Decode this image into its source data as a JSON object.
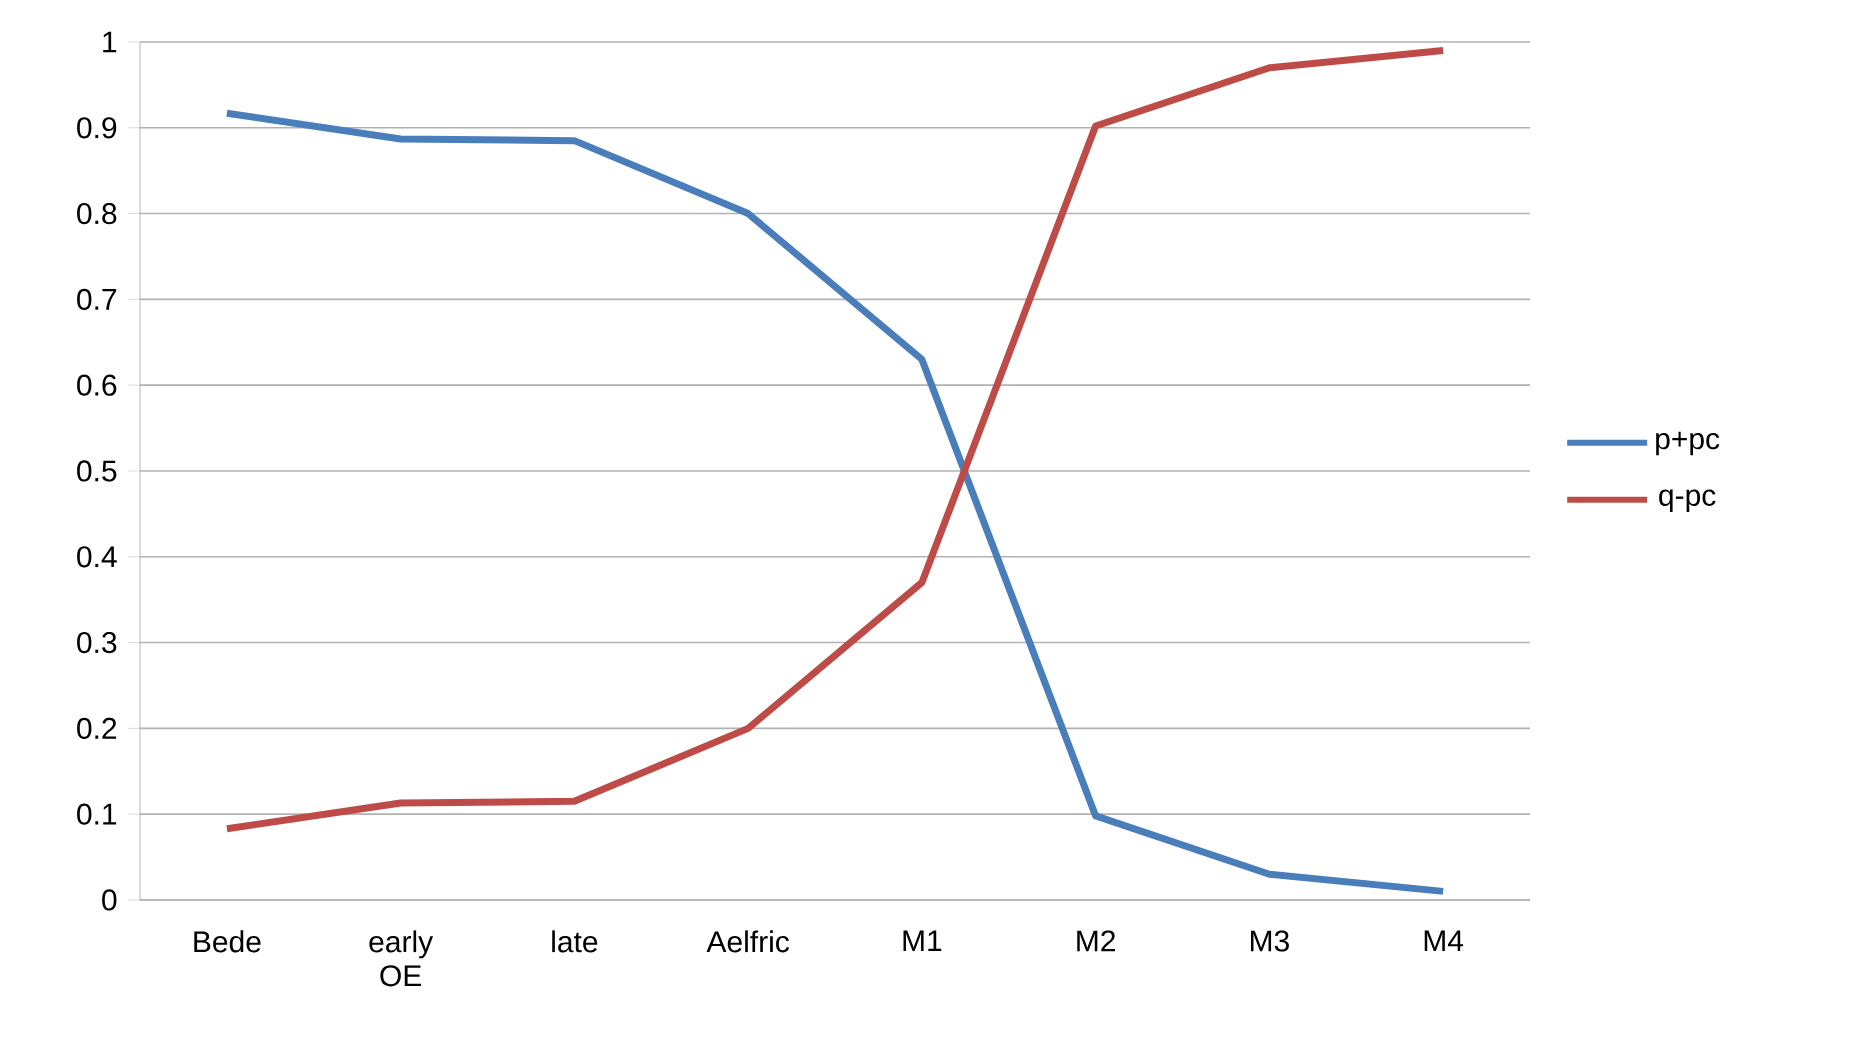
{
  "chart_data": {
    "type": "line",
    "categories": [
      "Bede",
      "early OE",
      "late",
      "Aelfric",
      "M1",
      "M2",
      "M3",
      "M4"
    ],
    "series": [
      {
        "name": "p+pc",
        "color": "#4a7ebb",
        "values": [
          0.917,
          0.887,
          0.885,
          0.8,
          0.63,
          0.098,
          0.03,
          0.01
        ]
      },
      {
        "name": "q-pc",
        "color": "#be4b48",
        "values": [
          0.083,
          0.113,
          0.115,
          0.2,
          0.37,
          0.902,
          0.97,
          0.99
        ]
      }
    ],
    "ylim": [
      0,
      1
    ],
    "yticks": [
      0,
      0.1,
      0.2,
      0.3,
      0.4,
      0.5,
      0.6,
      0.7,
      0.8,
      0.9,
      1
    ],
    "grid": "y",
    "legend": "right",
    "marker": "none",
    "line_style": "solid"
  }
}
